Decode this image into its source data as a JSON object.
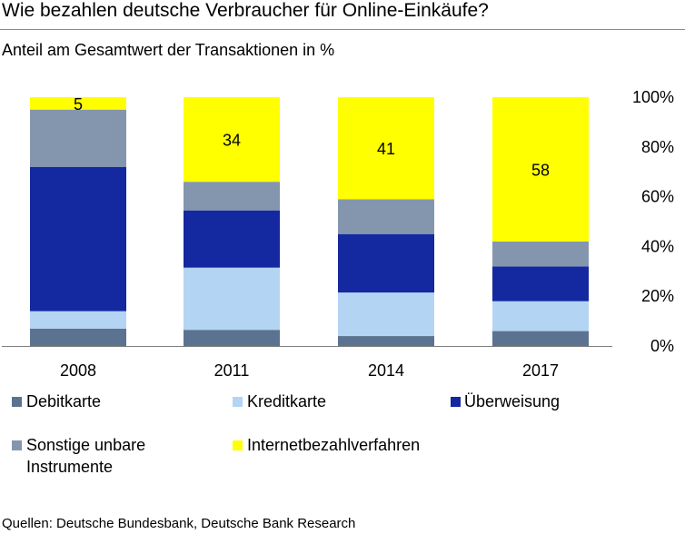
{
  "title": "Wie bezahlen deutsche Verbraucher für Online-Einkäufe?",
  "subtitle": "Anteil am Gesamtwert der Transaktionen in %",
  "source": "Quellen: Deutsche Bundesbank, Deutsche Bank Research",
  "chart_data": {
    "type": "bar",
    "stacked": true,
    "categories": [
      "2008",
      "2011",
      "2014",
      "2017"
    ],
    "series": [
      {
        "name": "Debitkarte",
        "color": "#5b7390",
        "values": [
          7,
          6.5,
          4,
          6
        ]
      },
      {
        "name": "Kreditkarte",
        "color": "#b4d4f4",
        "values": [
          7,
          25,
          17.5,
          12
        ]
      },
      {
        "name": "Überweisung",
        "color": "#1428a0",
        "values": [
          58,
          23,
          23.5,
          14
        ]
      },
      {
        "name": "Sonstige unbare Instrumente",
        "color": "#8496ae",
        "values": [
          23,
          11.5,
          14,
          10
        ]
      },
      {
        "name": "Internetbezahlverfahren",
        "color": "#ffff00",
        "values": [
          5,
          34,
          41,
          58
        ]
      }
    ],
    "data_labels": [
      "5",
      "34",
      "41",
      "58"
    ],
    "ylim": [
      0,
      100
    ],
    "yticks": [
      "0%",
      "20%",
      "40%",
      "60%",
      "80%",
      "100%"
    ],
    "y_axis_position": "right",
    "grid": false,
    "legend_position": "bottom"
  }
}
